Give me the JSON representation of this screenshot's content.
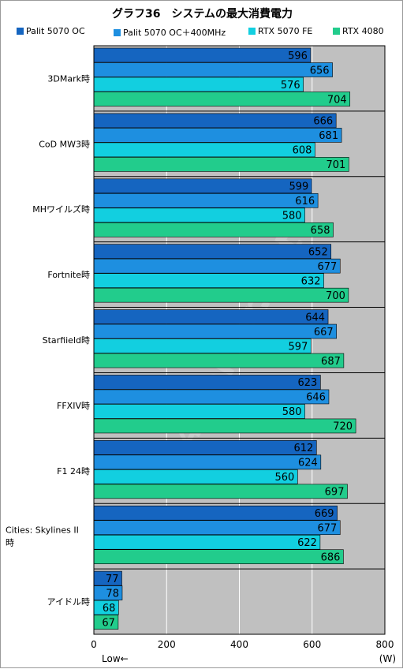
{
  "chart_data": {
    "type": "bar",
    "orientation": "horizontal",
    "title": "グラフ36　システムの最大消費電力",
    "categories": [
      "3DMark時",
      "CoD MW3時",
      "MHワイルズ時",
      "Fortnite時",
      "Starfiield時",
      "FFXIV時",
      "F1 24時",
      "Cities: Skylines II 時",
      "アイドル時"
    ],
    "series": [
      {
        "name": "Palit 5070 OC",
        "color": "#1565c0",
        "values": [
          596,
          666,
          599,
          652,
          644,
          623,
          612,
          669,
          77
        ]
      },
      {
        "name": "Palit 5070 OC＋400MHz",
        "color": "#1e8fe0",
        "values": [
          656,
          681,
          616,
          677,
          667,
          646,
          624,
          677,
          78
        ]
      },
      {
        "name": "RTX 5070 FE",
        "color": "#12cfe0",
        "values": [
          576,
          608,
          580,
          632,
          597,
          580,
          560,
          622,
          68
        ]
      },
      {
        "name": "RTX 4080",
        "color": "#22cc8c",
        "values": [
          704,
          701,
          658,
          700,
          687,
          720,
          697,
          686,
          67
        ]
      }
    ],
    "xlim": [
      0,
      800
    ],
    "xticks": [
      0,
      200,
      400,
      600,
      800
    ],
    "xlabel_unit": "(W)",
    "xlabel_note": "Low←",
    "grid": true,
    "legend_position": "top",
    "plot_background": "#c0c0c0",
    "watermark": "4Gamer.net"
  }
}
